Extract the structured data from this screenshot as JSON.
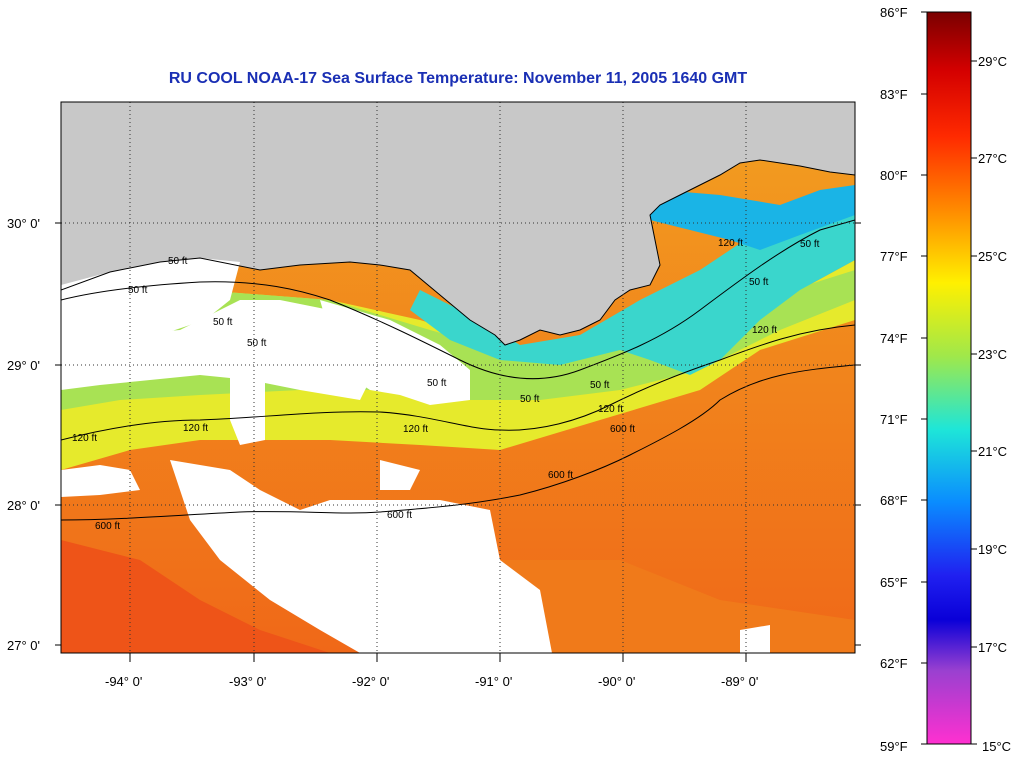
{
  "title": "RU COOL  NOAA-17  Sea Surface Temperature:  November 11, 2005 1640 GMT",
  "map": {
    "latitude_labels": [
      "30° 0'",
      "29° 0'",
      "28° 0'",
      "27° 0'"
    ],
    "longitude_labels": [
      "-94° 0'",
      "-93° 0'",
      "-92° 0'",
      "-91° 0'",
      "-90° 0'",
      "-89° 0'"
    ],
    "contour_labels": [
      "50 ft",
      "50 ft",
      "50 ft",
      "50 ft",
      "50 ft",
      "50 ft",
      "50 ft",
      "50 ft",
      "50 ft",
      "120 ft",
      "120 ft",
      "120 ft",
      "120 ft",
      "120 ft",
      "120 ft",
      "600 ft",
      "600 ft",
      "600 ft",
      "600 ft"
    ],
    "colors": {
      "land": "#c8c8c8",
      "cloud": "#ffffff",
      "warm_water": "#f08a1a",
      "shelf_water": "#e2ea2a",
      "coastal_water": "#3ad8d0",
      "title": "#1a2fb4"
    }
  },
  "colorbar": {
    "fahrenheit_ticks": [
      "86°F",
      "83°F",
      "80°F",
      "77°F",
      "74°F",
      "71°F",
      "68°F",
      "65°F",
      "62°F",
      "59°F"
    ],
    "celsius_ticks": [
      "29°C",
      "27°C",
      "25°C",
      "23°C",
      "21°C",
      "19°C",
      "17°C",
      "15°C"
    ]
  }
}
